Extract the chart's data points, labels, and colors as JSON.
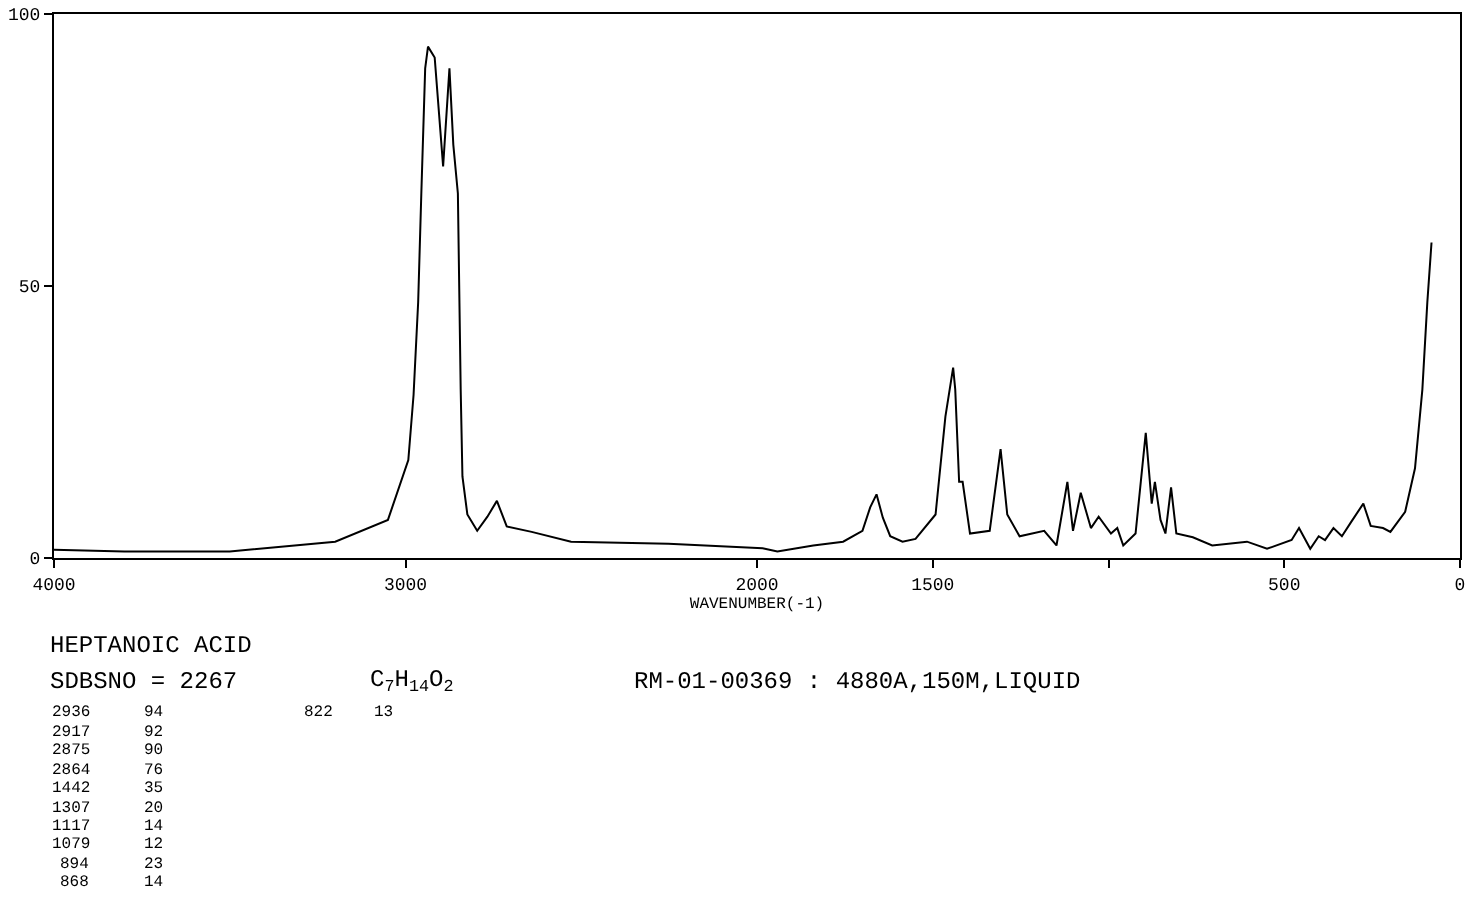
{
  "chart_data": {
    "type": "line",
    "title": "HEPTANOIC ACID",
    "xlabel": "WAVENUMBER(-1)",
    "annotations": [
      "SDBSNO = 2267",
      "C$_{7}$H$_{14}$O$_{2}$",
      "RM-01-00369 : 4880A,150M,LIQUID",
      "2936\n2917\n2875\n2864\n1442\n1307\n1117\n1079\n894\n868",
      "94\n92\n90\n76\n35\n20\n14\n12\n23\n14",
      "822",
      "13"
    ],
    "x": [
      4000,
      3800,
      3500,
      3200,
      3050,
      2992,
      2977,
      2964,
      2955,
      2944,
      2936,
      2917,
      2893,
      2875,
      2864,
      2851,
      2843,
      2838,
      2824,
      2796,
      2767,
      2740,
      2712,
      2641,
      2529,
      2252,
      1984,
      1942,
      1840,
      1755,
      1700,
      1678,
      1660,
      1642,
      1621,
      1586,
      1549,
      1492,
      1464,
      1442,
      1436,
      1425,
      1415,
      1394,
      1338,
      1307,
      1288,
      1253,
      1183,
      1148,
      1117,
      1101,
      1079,
      1050,
      1028,
      993,
      975,
      958,
      923,
      894,
      877,
      868,
      852,
      838,
      822,
      807,
      760,
      705,
      606,
      549,
      479,
      458,
      426,
      402,
      384,
      360,
      336,
      310,
      275,
      254,
      219,
      198,
      156,
      128,
      107,
      93,
      81
    ],
    "values": [
      1.5,
      1.2,
      1.2,
      3,
      7,
      18,
      30,
      47,
      67,
      90,
      94,
      92,
      72,
      90,
      76,
      67,
      31,
      15,
      8,
      5,
      7.6,
      10.5,
      5.8,
      4.8,
      3,
      2.6,
      1.8,
      1.2,
      2.3,
      3,
      5,
      9.3,
      11.7,
      7.4,
      4,
      3,
      3.5,
      8,
      26,
      35,
      31,
      14,
      14,
      4.5,
      5,
      20,
      8,
      4,
      5,
      2.3,
      14,
      5,
      12,
      5.5,
      7.6,
      4.5,
      5.5,
      2.3,
      4.5,
      23,
      10,
      14,
      7,
      4.5,
      13,
      4.5,
      3.8,
      2.3,
      3,
      1.7,
      3.3,
      5.5,
      1.7,
      4,
      3.3,
      5.5,
      4,
      6.6,
      10,
      5.9,
      5.5,
      4.8,
      8.5,
      16.5,
      31,
      47,
      58
    ],
    "color": "#000000",
    "xlim": [
      4000,
      0
    ],
    "xticks": [
      4000,
      3000,
      2000,
      1500,
      {
        "value": 1000,
        "label": null
      },
      500,
      0
    ],
    "ylim": [
      0,
      100
    ],
    "yticks": [
      0,
      50,
      100
    ]
  }
}
